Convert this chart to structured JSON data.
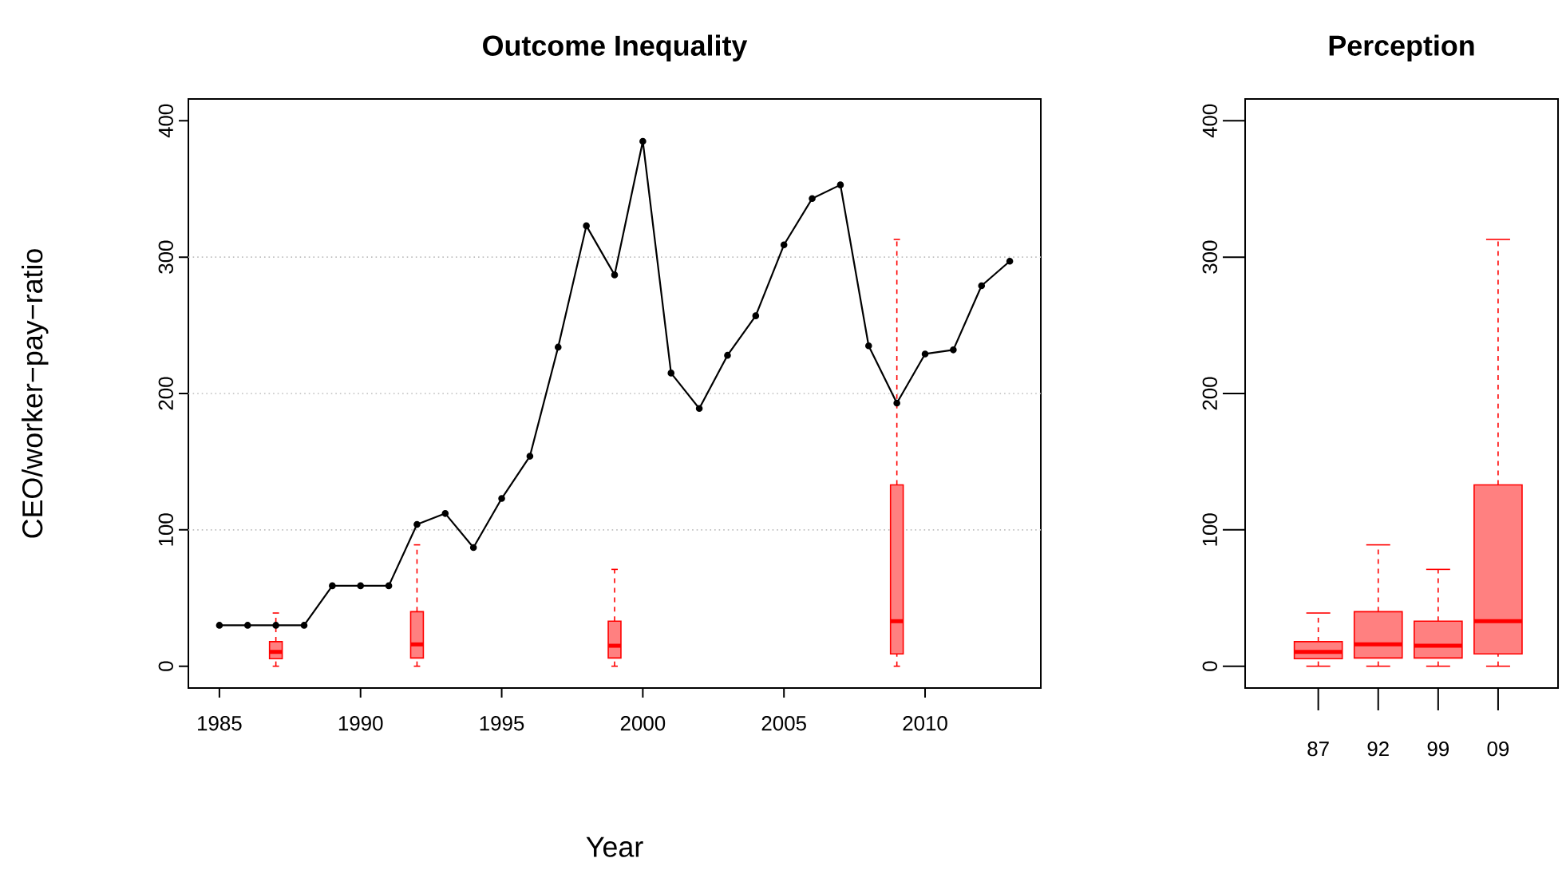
{
  "chart_data": [
    {
      "type": "line",
      "title": "Outcome Inequality",
      "xlabel": "Year",
      "ylabel": "CEO/worker−pay−ratio",
      "xlim": [
        1983.9,
        2014.1
      ],
      "ylim": [
        -16,
        416
      ],
      "xticks": [
        1985,
        1990,
        1995,
        2000,
        2005,
        2010
      ],
      "yticks": [
        0,
        100,
        200,
        300,
        400
      ],
      "marker": "circle",
      "ref_lines": [
        {
          "axis": "y",
          "value": 100,
          "color": "#bebebe",
          "line_style": "dotted"
        },
        {
          "axis": "y",
          "value": 200,
          "color": "#bebebe",
          "line_style": "dotted"
        },
        {
          "axis": "y",
          "value": 300,
          "color": "#bebebe",
          "line_style": "dotted"
        }
      ],
      "series": [
        {
          "color": "#000000",
          "x": [
            1985,
            1986,
            1987,
            1988,
            1989,
            1990,
            1991,
            1992,
            1993,
            1994,
            1995,
            1996,
            1997,
            1998,
            1999,
            2000,
            2001,
            2002,
            2003,
            2004,
            2005,
            2006,
            2007,
            2008,
            2009,
            2010,
            2011,
            2012,
            2013
          ],
          "values": [
            30,
            30,
            30,
            30,
            59,
            59,
            59,
            104,
            112,
            87,
            123,
            154,
            234,
            323,
            287,
            385,
            215,
            189,
            228,
            257,
            309,
            343,
            353,
            235,
            193,
            229,
            232,
            279,
            297
          ]
        },
        {
          "type": "box",
          "color": "#ff0000",
          "x": [
            1987,
            1992,
            1999,
            2009
          ],
          "boxes": [
            {
              "low": 0,
              "q1": 5.5,
              "median": 10.5,
              "q3": 18,
              "high": 39
            },
            {
              "low": 0,
              "q1": 6,
              "median": 16,
              "q3": 40,
              "high": 89
            },
            {
              "low": 0,
              "q1": 6,
              "median": 15,
              "q3": 33,
              "high": 71
            },
            {
              "low": 0,
              "q1": 9,
              "median": 33,
              "q3": 133,
              "high": 313
            }
          ]
        }
      ]
    },
    {
      "type": "box",
      "title": "Perception",
      "categories": [
        "87",
        "92",
        "99",
        "09"
      ],
      "ylim": [
        -16,
        416
      ],
      "yticks": [
        0,
        100,
        200,
        300,
        400
      ],
      "color": "#ff0000",
      "boxes": [
        {
          "low": 0,
          "q1": 5.5,
          "median": 10.5,
          "q3": 18,
          "high": 39
        },
        {
          "low": 0,
          "q1": 6,
          "median": 16,
          "q3": 40,
          "high": 89
        },
        {
          "low": 0,
          "q1": 6,
          "median": 15,
          "q3": 33,
          "high": 71
        },
        {
          "low": 0,
          "q1": 9,
          "median": 33,
          "q3": 133,
          "high": 313
        }
      ]
    }
  ]
}
